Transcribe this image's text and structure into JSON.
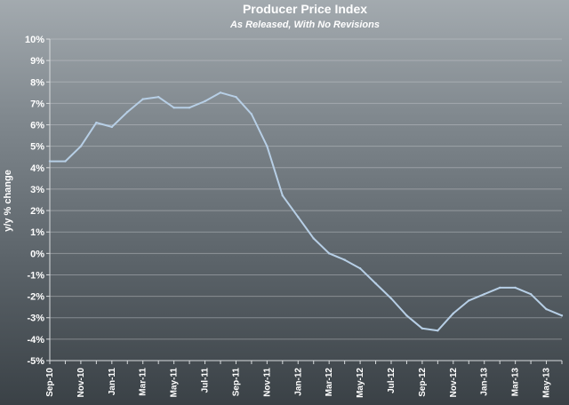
{
  "chart_data": {
    "type": "line",
    "title": "Producer Price Index",
    "subtitle": "As Released, With No Revisions",
    "ylabel": "y/y % change",
    "xlabel": "",
    "ylim": [
      -5,
      10
    ],
    "y_ticks": [
      "-5%",
      "-4%",
      "-3%",
      "-2%",
      "-1%",
      "0%",
      "1%",
      "2%",
      "3%",
      "4%",
      "5%",
      "6%",
      "7%",
      "8%",
      "9%",
      "10%"
    ],
    "x_tick_labels": [
      "Sep-10",
      "Nov-10",
      "Jan-11",
      "Mar-11",
      "May-11",
      "Jul-11",
      "Sep-11",
      "Nov-11",
      "Jan-12",
      "Mar-12",
      "May-12",
      "Jul-12",
      "Sep-12",
      "Nov-12",
      "Jan-13",
      "Mar-13",
      "May-13"
    ],
    "grid": true,
    "line_color": "#b7cfe6",
    "x": [
      "Sep-10",
      "Oct-10",
      "Nov-10",
      "Dec-10",
      "Jan-11",
      "Feb-11",
      "Mar-11",
      "Apr-11",
      "May-11",
      "Jun-11",
      "Jul-11",
      "Aug-11",
      "Sep-11",
      "Oct-11",
      "Nov-11",
      "Dec-11",
      "Jan-12",
      "Feb-12",
      "Mar-12",
      "Apr-12",
      "May-12",
      "Jun-12",
      "Jul-12",
      "Aug-12",
      "Sep-12",
      "Oct-12",
      "Nov-12",
      "Dec-12",
      "Jan-13",
      "Feb-13",
      "Mar-13",
      "Apr-13",
      "May-13",
      "Jun-13"
    ],
    "series": [
      {
        "values": [
          4.3,
          4.3,
          5.0,
          6.1,
          5.9,
          6.6,
          7.2,
          7.3,
          6.8,
          6.8,
          7.1,
          7.5,
          7.3,
          6.5,
          5.0,
          2.7,
          1.7,
          0.7,
          0.0,
          -0.3,
          -0.7,
          -1.4,
          -2.1,
          -2.9,
          -3.5,
          -3.6,
          -2.8,
          -2.2,
          -1.9,
          -1.6,
          -1.6,
          -1.9,
          -2.6,
          -2.9
        ]
      }
    ]
  }
}
